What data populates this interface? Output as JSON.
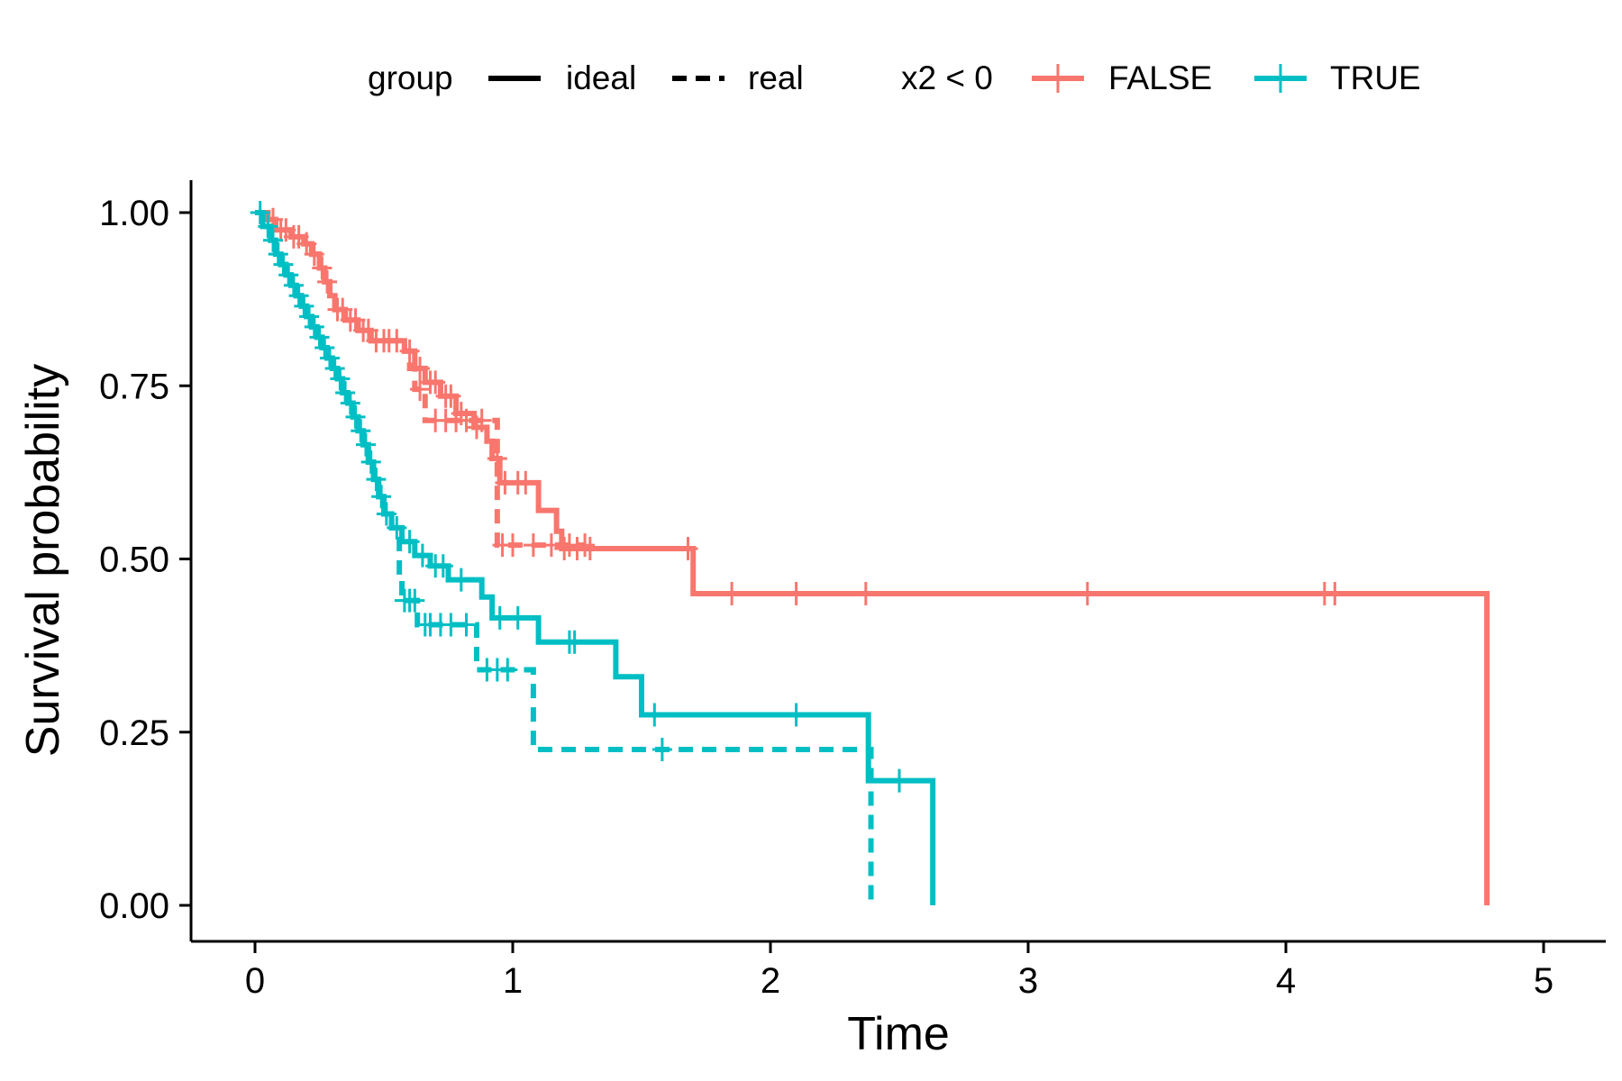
{
  "chart_data": {
    "type": "line",
    "subtype": "kaplan-meier survival curve",
    "xlabel": "Time",
    "ylabel": "Survival probability",
    "xlim": [
      -0.25,
      5.25
    ],
    "ylim": [
      -0.05,
      1.05
    ],
    "x_ticks": [
      "0",
      "1",
      "2",
      "3",
      "4",
      "5"
    ],
    "y_ticks": [
      "0.00",
      "0.25",
      "0.50",
      "0.75",
      "1.00"
    ],
    "grid": false,
    "legend": {
      "placement": "top",
      "linetype_title": "group",
      "linetype_entries": [
        "ideal",
        "real"
      ],
      "color_title": "x2 < 0",
      "color_entries": [
        "FALSE",
        "TRUE"
      ]
    },
    "colors": {
      "FALSE": "#F8766D",
      "TRUE": "#00BFC4"
    },
    "series": [
      {
        "group": "ideal",
        "x2": "FALSE",
        "linetype": "solid",
        "steps": [
          [
            0,
            1.0
          ],
          [
            0.05,
            0.99
          ],
          [
            0.08,
            0.975
          ],
          [
            0.14,
            0.965
          ],
          [
            0.19,
            0.955
          ],
          [
            0.22,
            0.94
          ],
          [
            0.25,
            0.92
          ],
          [
            0.27,
            0.9
          ],
          [
            0.29,
            0.88
          ],
          [
            0.31,
            0.86
          ],
          [
            0.35,
            0.845
          ],
          [
            0.4,
            0.83
          ],
          [
            0.45,
            0.815
          ],
          [
            0.58,
            0.8
          ],
          [
            0.62,
            0.775
          ],
          [
            0.66,
            0.755
          ],
          [
            0.72,
            0.735
          ],
          [
            0.78,
            0.71
          ],
          [
            0.85,
            0.69
          ],
          [
            0.9,
            0.67
          ],
          [
            0.92,
            0.645
          ],
          [
            0.95,
            0.61
          ],
          [
            1.1,
            0.57
          ],
          [
            1.17,
            0.54
          ],
          [
            1.19,
            0.515
          ],
          [
            1.7,
            0.45
          ],
          [
            4.78,
            0.0
          ]
        ],
        "censor_times": [
          0.07,
          0.1,
          0.12,
          0.15,
          0.17,
          0.2,
          0.23,
          0.26,
          0.28,
          0.32,
          0.34,
          0.37,
          0.39,
          0.42,
          0.44,
          0.47,
          0.5,
          0.52,
          0.55,
          0.6,
          0.64,
          0.68,
          0.7,
          0.74,
          0.76,
          0.8,
          0.86,
          0.94,
          0.97,
          1.02,
          1.05,
          1.2,
          1.25,
          1.3,
          1.68,
          1.85,
          2.1,
          2.37,
          3.23,
          4.15,
          4.19
        ]
      },
      {
        "group": "real",
        "x2": "FALSE",
        "linetype": "dashed",
        "steps": [
          [
            0,
            1.0
          ],
          [
            0.05,
            0.99
          ],
          [
            0.08,
            0.975
          ],
          [
            0.14,
            0.965
          ],
          [
            0.19,
            0.955
          ],
          [
            0.22,
            0.94
          ],
          [
            0.25,
            0.92
          ],
          [
            0.27,
            0.9
          ],
          [
            0.29,
            0.88
          ],
          [
            0.31,
            0.86
          ],
          [
            0.35,
            0.845
          ],
          [
            0.4,
            0.83
          ],
          [
            0.45,
            0.815
          ],
          [
            0.58,
            0.8
          ],
          [
            0.6,
            0.775
          ],
          [
            0.62,
            0.745
          ],
          [
            0.66,
            0.7
          ],
          [
            0.94,
            0.52
          ]
        ],
        "end_time": 1.28,
        "censor_times": [
          0.64,
          0.7,
          0.74,
          0.78,
          0.82,
          0.88,
          0.96,
          1.0,
          1.08,
          1.15,
          1.22,
          1.28
        ]
      },
      {
        "group": "ideal",
        "x2": "TRUE",
        "linetype": "solid",
        "steps": [
          [
            0,
            1.0
          ],
          [
            0.03,
            0.98
          ],
          [
            0.06,
            0.96
          ],
          [
            0.08,
            0.94
          ],
          [
            0.1,
            0.925
          ],
          [
            0.12,
            0.91
          ],
          [
            0.14,
            0.895
          ],
          [
            0.16,
            0.88
          ],
          [
            0.18,
            0.865
          ],
          [
            0.2,
            0.85
          ],
          [
            0.22,
            0.835
          ],
          [
            0.24,
            0.82
          ],
          [
            0.26,
            0.805
          ],
          [
            0.28,
            0.79
          ],
          [
            0.3,
            0.775
          ],
          [
            0.32,
            0.76
          ],
          [
            0.34,
            0.74
          ],
          [
            0.36,
            0.725
          ],
          [
            0.38,
            0.705
          ],
          [
            0.4,
            0.685
          ],
          [
            0.42,
            0.665
          ],
          [
            0.44,
            0.64
          ],
          [
            0.46,
            0.615
          ],
          [
            0.48,
            0.59
          ],
          [
            0.5,
            0.565
          ],
          [
            0.53,
            0.545
          ],
          [
            0.57,
            0.525
          ],
          [
            0.62,
            0.505
          ],
          [
            0.68,
            0.49
          ],
          [
            0.75,
            0.47
          ],
          [
            0.88,
            0.445
          ],
          [
            0.92,
            0.415
          ],
          [
            1.1,
            0.38
          ],
          [
            1.4,
            0.33
          ],
          [
            1.5,
            0.275
          ],
          [
            2.38,
            0.18
          ],
          [
            2.63,
            0.0
          ]
        ],
        "censor_times": [
          0.02,
          0.05,
          0.07,
          0.09,
          0.11,
          0.13,
          0.15,
          0.17,
          0.19,
          0.21,
          0.23,
          0.25,
          0.27,
          0.29,
          0.31,
          0.33,
          0.35,
          0.37,
          0.39,
          0.41,
          0.43,
          0.45,
          0.47,
          0.49,
          0.51,
          0.55,
          0.6,
          0.65,
          0.7,
          0.73,
          0.8,
          0.95,
          1.02,
          1.22,
          1.24,
          1.55,
          2.1,
          2.5
        ]
      },
      {
        "group": "real",
        "x2": "TRUE",
        "linetype": "dashed",
        "steps": [
          [
            0,
            1.0
          ],
          [
            0.03,
            0.98
          ],
          [
            0.06,
            0.96
          ],
          [
            0.08,
            0.94
          ],
          [
            0.1,
            0.925
          ],
          [
            0.12,
            0.91
          ],
          [
            0.14,
            0.895
          ],
          [
            0.16,
            0.88
          ],
          [
            0.18,
            0.865
          ],
          [
            0.2,
            0.85
          ],
          [
            0.22,
            0.835
          ],
          [
            0.24,
            0.82
          ],
          [
            0.26,
            0.805
          ],
          [
            0.28,
            0.79
          ],
          [
            0.3,
            0.775
          ],
          [
            0.32,
            0.76
          ],
          [
            0.34,
            0.74
          ],
          [
            0.36,
            0.725
          ],
          [
            0.38,
            0.705
          ],
          [
            0.4,
            0.685
          ],
          [
            0.42,
            0.665
          ],
          [
            0.44,
            0.64
          ],
          [
            0.46,
            0.615
          ],
          [
            0.48,
            0.59
          ],
          [
            0.5,
            0.565
          ],
          [
            0.53,
            0.545
          ],
          [
            0.56,
            0.47
          ],
          [
            0.57,
            0.44
          ],
          [
            0.63,
            0.405
          ],
          [
            0.86,
            0.34
          ],
          [
            1.08,
            0.225
          ],
          [
            2.39,
            0.0
          ]
        ],
        "censor_times": [
          0.58,
          0.6,
          0.62,
          0.66,
          0.68,
          0.72,
          0.76,
          0.82,
          0.9,
          0.94,
          0.98,
          1.58
        ]
      }
    ]
  }
}
